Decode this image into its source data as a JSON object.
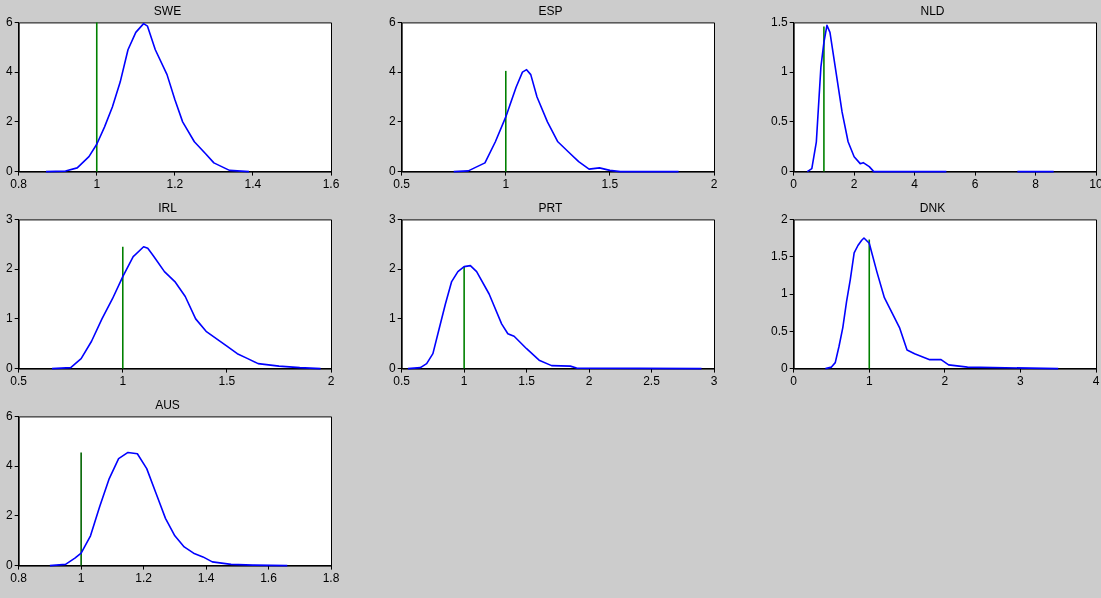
{
  "chart_data": [
    {
      "type": "line",
      "title": "SWE",
      "marker": "none",
      "line_style": "solid",
      "xlim": [
        0.8,
        1.6
      ],
      "xticks": [
        0.8,
        1,
        1.2,
        1.4,
        1.6
      ],
      "ylim": [
        0,
        6
      ],
      "yticks": [
        0,
        2,
        4,
        6
      ],
      "series": [
        {
          "color": "#0000ff",
          "x": [
            0.87,
            0.92,
            0.95,
            0.98,
            1.0,
            1.02,
            1.04,
            1.06,
            1.08,
            1.1,
            1.12,
            1.13,
            1.15,
            1.18,
            1.2,
            1.22,
            1.25,
            1.28,
            1.3,
            1.34,
            1.39
          ],
          "values": [
            0,
            0.02,
            0.15,
            0.6,
            1.1,
            1.8,
            2.6,
            3.6,
            4.9,
            5.6,
            5.95,
            5.85,
            4.9,
            3.9,
            2.9,
            2.0,
            1.2,
            0.7,
            0.35,
            0.05,
            0
          ]
        },
        {
          "color": "#008000",
          "x": [
            1,
            1
          ],
          "values": [
            0,
            6
          ]
        }
      ]
    },
    {
      "type": "line",
      "title": "ESP",
      "marker": "none",
      "line_style": "solid",
      "xlim": [
        0.5,
        2
      ],
      "xticks": [
        0.5,
        1,
        1.5,
        2
      ],
      "ylim": [
        0,
        6
      ],
      "yticks": [
        0,
        2,
        4,
        6
      ],
      "series": [
        {
          "color": "#0000ff",
          "x": [
            0.75,
            0.82,
            0.85,
            0.9,
            0.95,
            1.0,
            1.05,
            1.08,
            1.1,
            1.12,
            1.15,
            1.2,
            1.25,
            1.3,
            1.35,
            1.4,
            1.45,
            1.5,
            1.55,
            1.83
          ],
          "values": [
            0,
            0.03,
            0.15,
            0.35,
            1.2,
            2.2,
            3.4,
            4.0,
            4.1,
            3.9,
            3.0,
            2.0,
            1.2,
            0.8,
            0.4,
            0.1,
            0.15,
            0.05,
            0,
            0
          ]
        },
        {
          "color": "#008000",
          "x": [
            1,
            1
          ],
          "values": [
            0,
            4.05
          ]
        }
      ]
    },
    {
      "type": "line",
      "title": "NLD",
      "marker": "none",
      "line_style": "solid",
      "xlim": [
        0,
        10
      ],
      "xticks": [
        0,
        2,
        4,
        6,
        8,
        10
      ],
      "ylim": [
        0,
        1.5
      ],
      "yticks": [
        0,
        0.5,
        1,
        1.5
      ],
      "series": [
        {
          "color": "#0000ff",
          "x": [
            0.45,
            0.6,
            0.75,
            0.9,
            1.0,
            1.1,
            1.2,
            1.4,
            1.6,
            1.8,
            2.0,
            2.2,
            2.3,
            2.5,
            2.65,
            5.05,
            6.2,
            7.4,
            8.6
          ],
          "values": [
            0,
            0.03,
            0.3,
            1.05,
            1.3,
            1.47,
            1.4,
            1.0,
            0.6,
            0.3,
            0.15,
            0.08,
            0.09,
            0.05,
            0,
            0,
            null,
            0,
            0
          ]
        },
        {
          "color": "#008000",
          "x": [
            1,
            1
          ],
          "values": [
            0,
            1.46
          ]
        }
      ]
    },
    {
      "type": "line",
      "title": "IRL",
      "marker": "none",
      "line_style": "solid",
      "xlim": [
        0.5,
        2
      ],
      "xticks": [
        0.5,
        1,
        1.5,
        2
      ],
      "ylim": [
        0,
        3
      ],
      "yticks": [
        0,
        1,
        2,
        3
      ],
      "series": [
        {
          "color": "#0000ff",
          "x": [
            0.66,
            0.75,
            0.8,
            0.85,
            0.9,
            0.95,
            1.0,
            1.05,
            1.1,
            1.12,
            1.15,
            1.2,
            1.25,
            1.3,
            1.35,
            1.4,
            1.5,
            1.55,
            1.6,
            1.65,
            1.75,
            1.85,
            1.95
          ],
          "values": [
            0,
            0.02,
            0.2,
            0.55,
            1.0,
            1.4,
            1.85,
            2.25,
            2.45,
            2.42,
            2.25,
            1.95,
            1.75,
            1.45,
            1.0,
            0.75,
            0.45,
            0.3,
            0.2,
            0.1,
            0.05,
            0.02,
            0
          ]
        },
        {
          "color": "#008000",
          "x": [
            1,
            1
          ],
          "values": [
            0,
            2.45
          ]
        }
      ]
    },
    {
      "type": "line",
      "title": "PRT",
      "marker": "none",
      "line_style": "solid",
      "xlim": [
        0.5,
        3
      ],
      "xticks": [
        0.5,
        1,
        1.5,
        2,
        2.5,
        3
      ],
      "ylim": [
        0,
        3
      ],
      "yticks": [
        0,
        1,
        2,
        3
      ],
      "series": [
        {
          "color": "#0000ff",
          "x": [
            0.55,
            0.65,
            0.7,
            0.75,
            0.8,
            0.85,
            0.9,
            0.95,
            1.0,
            1.05,
            1.1,
            1.2,
            1.3,
            1.35,
            1.4,
            1.5,
            1.6,
            1.7,
            1.85,
            1.9,
            2.9
          ],
          "values": [
            0,
            0.02,
            0.1,
            0.3,
            0.8,
            1.3,
            1.75,
            1.95,
            2.05,
            2.07,
            1.95,
            1.5,
            0.9,
            0.7,
            0.65,
            0.4,
            0.17,
            0.06,
            0.05,
            0.01,
            0
          ]
        },
        {
          "color": "#008000",
          "x": [
            1,
            1
          ],
          "values": [
            0,
            2.05
          ]
        }
      ]
    },
    {
      "type": "line",
      "title": "DNK",
      "marker": "none",
      "line_style": "solid",
      "xlim": [
        0,
        4
      ],
      "xticks": [
        0,
        1,
        2,
        3,
        4
      ],
      "ylim": [
        0,
        2
      ],
      "yticks": [
        0,
        0.5,
        1,
        1.5,
        2
      ],
      "series": [
        {
          "color": "#0000ff",
          "x": [
            0.42,
            0.5,
            0.55,
            0.6,
            0.65,
            0.7,
            0.75,
            0.8,
            0.85,
            0.9,
            0.93,
            1.0,
            1.1,
            1.2,
            1.3,
            1.4,
            1.5,
            1.6,
            1.7,
            1.8,
            1.95,
            2.05,
            2.3,
            3.5
          ],
          "values": [
            0,
            0.02,
            0.08,
            0.3,
            0.55,
            0.9,
            1.2,
            1.55,
            1.65,
            1.72,
            1.75,
            1.68,
            1.3,
            0.95,
            0.75,
            0.55,
            0.25,
            0.2,
            0.16,
            0.12,
            0.12,
            0.05,
            0.02,
            0
          ]
        },
        {
          "color": "#008000",
          "x": [
            1,
            1
          ],
          "values": [
            0,
            1.73
          ]
        }
      ]
    },
    {
      "type": "line",
      "title": "AUS",
      "marker": "none",
      "line_style": "solid",
      "xlim": [
        0.8,
        1.8
      ],
      "xticks": [
        0.8,
        1,
        1.2,
        1.4,
        1.6,
        1.8
      ],
      "ylim": [
        0,
        6
      ],
      "yticks": [
        0,
        2,
        4,
        6
      ],
      "series": [
        {
          "color": "#0000ff",
          "x": [
            0.9,
            0.95,
            0.98,
            1.0,
            1.03,
            1.06,
            1.09,
            1.12,
            1.15,
            1.18,
            1.21,
            1.24,
            1.27,
            1.3,
            1.33,
            1.36,
            1.39,
            1.42,
            1.48,
            1.55,
            1.66
          ],
          "values": [
            0,
            0.05,
            0.3,
            0.5,
            1.2,
            2.4,
            3.5,
            4.3,
            4.55,
            4.5,
            3.9,
            2.9,
            1.9,
            1.2,
            0.75,
            0.5,
            0.35,
            0.15,
            0.05,
            0.02,
            0
          ]
        },
        {
          "color": "#006400",
          "x": [
            1,
            1
          ],
          "values": [
            0,
            4.55
          ]
        }
      ]
    }
  ]
}
